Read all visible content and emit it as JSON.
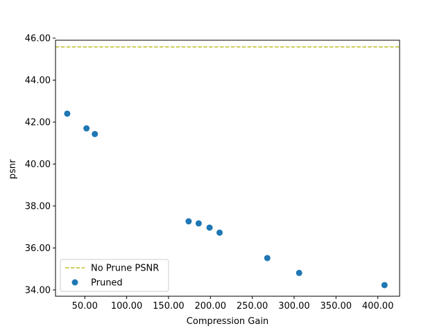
{
  "chart_data": {
    "type": "scatter",
    "xlabel": "Compression Gain",
    "ylabel": "psnr",
    "xlim": [
      15,
      426
    ],
    "ylim": [
      33.7,
      45.9
    ],
    "xticks": [
      50,
      100,
      150,
      200,
      250,
      300,
      350,
      400
    ],
    "yticks": [
      34,
      36,
      38,
      40,
      42,
      44,
      46
    ],
    "tick_format": "2 decimals",
    "grid": false,
    "legend_position": "lower-left",
    "reference_line": {
      "name": "No Prune PSNR",
      "y": 45.58,
      "style": "dashed",
      "color": "#bcbd22"
    },
    "series": [
      {
        "name": "Pruned",
        "color": "#1f77b4",
        "x": [
          29,
          52,
          62,
          174,
          186,
          199,
          211,
          268,
          306,
          408
        ],
        "y": [
          42.4,
          41.7,
          41.43,
          37.27,
          37.17,
          36.97,
          36.73,
          35.52,
          34.81,
          34.23
        ]
      }
    ]
  }
}
